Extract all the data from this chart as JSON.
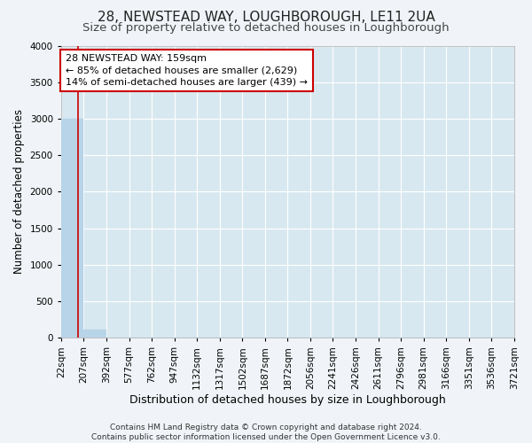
{
  "title": "28, NEWSTEAD WAY, LOUGHBOROUGH, LE11 2UA",
  "subtitle": "Size of property relative to detached houses in Loughborough",
  "xlabel": "Distribution of detached houses by size in Loughborough",
  "ylabel": "Number of detached properties",
  "footer_line1": "Contains HM Land Registry data © Crown copyright and database right 2024.",
  "footer_line2": "Contains public sector information licensed under the Open Government Licence v3.0.",
  "bin_edges": [
    22,
    207,
    392,
    577,
    762,
    947,
    1132,
    1317,
    1502,
    1687,
    1872,
    2056,
    2241,
    2426,
    2611,
    2796,
    2981,
    3166,
    3351,
    3536,
    3721
  ],
  "bin_labels": [
    "22sqm",
    "207sqm",
    "392sqm",
    "577sqm",
    "762sqm",
    "947sqm",
    "1132sqm",
    "1317sqm",
    "1502sqm",
    "1687sqm",
    "1872sqm",
    "2056sqm",
    "2241sqm",
    "2426sqm",
    "2611sqm",
    "2796sqm",
    "2981sqm",
    "3166sqm",
    "3351sqm",
    "3536sqm",
    "3721sqm"
  ],
  "bar_heights": [
    3000,
    110,
    0,
    0,
    0,
    0,
    0,
    0,
    0,
    0,
    0,
    0,
    0,
    0,
    0,
    0,
    0,
    0,
    0,
    0
  ],
  "bar_color": "#b8d4e8",
  "bar_edgecolor": "#b8d4e8",
  "bg_color": "#d8e8f0",
  "grid_color": "#ffffff",
  "fig_bg_color": "#f0f4f8",
  "property_size": 159,
  "property_line_color": "#cc0000",
  "annotation_line1": "28 NEWSTEAD WAY: 159sqm",
  "annotation_line2": "← 85% of detached houses are smaller (2,629)",
  "annotation_line3": "14% of semi-detached houses are larger (439) →",
  "annotation_box_color": "#ffffff",
  "annotation_box_edgecolor": "#cc0000",
  "ylim": [
    0,
    4000
  ],
  "yticks": [
    0,
    500,
    1000,
    1500,
    2000,
    2500,
    3000,
    3500,
    4000
  ],
  "title_fontsize": 11,
  "subtitle_fontsize": 9.5,
  "xlabel_fontsize": 9,
  "ylabel_fontsize": 8.5,
  "tick_fontsize": 7.5,
  "annotation_fontsize": 8,
  "footer_fontsize": 6.5
}
